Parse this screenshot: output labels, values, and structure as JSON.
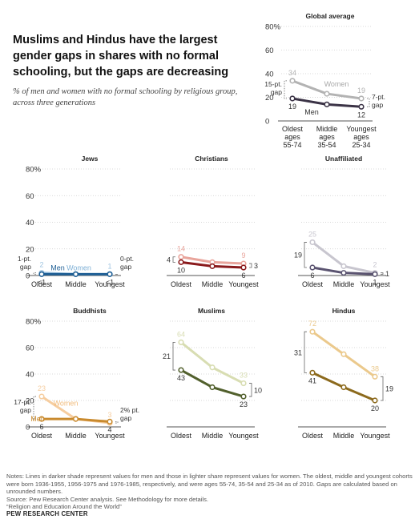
{
  "headline": "Muslims and Hindus have the largest gender gaps in shares with no formal schooling, but the gaps are decreasing",
  "subhead": "% of men and women with no formal schooling by religious group, across three generations",
  "notes": "Notes: Lines in darker shade represent values for men and those in lighter share represent values for women. The oldest, middle and youngest cohorts were born 1936-1955, 1956-1975 and 1976-1985, respectively, and were ages 55-74, 35-54 and 25-34 as of 2010. Gaps are calculated based on unrounded numbers.",
  "source": "Source: Pew Research Center analysis. See Methodology for more details.",
  "report": "“Religion and Education Around the World”",
  "brand": "PEW RESEARCH CENTER",
  "chart_data": [
    {
      "type": "line",
      "title": "Global average",
      "x": [
        "Oldest, ages 55-74",
        "Middle, ages 35-54",
        "Youngest, ages 25-34"
      ],
      "y_ticks": [
        "80%",
        "60",
        "40",
        "20",
        "0"
      ],
      "ylim": [
        0,
        80
      ],
      "series": [
        {
          "name": "Women",
          "values": [
            34,
            23,
            19
          ],
          "color": "#b3b3b3",
          "labels": [
            "34",
            "",
            "19"
          ]
        },
        {
          "name": "Men",
          "values": [
            19,
            14,
            12
          ],
          "color": "#3b3346",
          "labels": [
            "19",
            "",
            "12"
          ]
        }
      ],
      "gap_labels": [
        "15-pt. gap",
        "7-pt. gap"
      ]
    },
    {
      "type": "line",
      "title": "Jews",
      "x": [
        "Oldest",
        "Middle",
        "Youngest"
      ],
      "y_ticks": [
        "80%",
        "60",
        "40",
        "20",
        "0"
      ],
      "ylim": [
        0,
        80
      ],
      "series": [
        {
          "name": "Women",
          "values": [
            2,
            1,
            1
          ],
          "color": "#9ec3e0",
          "labels": [
            "2",
            "",
            "1"
          ]
        },
        {
          "name": "Men",
          "values": [
            1,
            1,
            1
          ],
          "color": "#1f5f95",
          "labels": [
            "<1",
            "",
            "<1"
          ]
        }
      ],
      "gap_labels": [
        "1-pt. gap",
        "0-pt. gap"
      ]
    },
    {
      "type": "line",
      "title": "Christians",
      "x": [
        "Oldest",
        "Middle",
        "Youngest"
      ],
      "y_ticks": [],
      "ylim": [
        0,
        80
      ],
      "series": [
        {
          "name": "Women",
          "values": [
            14,
            10,
            9
          ],
          "color": "#e9a59c",
          "labels": [
            "14",
            "",
            "9"
          ]
        },
        {
          "name": "Men",
          "values": [
            10,
            7,
            6
          ],
          "color": "#8a1a1c",
          "labels": [
            "10",
            "",
            "6"
          ]
        }
      ],
      "gap_labels": [
        "4",
        "3"
      ]
    },
    {
      "type": "line",
      "title": "Unaffiliated",
      "x": [
        "Oldest",
        "Middle",
        "Youngest"
      ],
      "y_ticks": [],
      "ylim": [
        0,
        80
      ],
      "series": [
        {
          "name": "Women",
          "values": [
            25,
            7,
            2
          ],
          "color": "#c8c6cf",
          "labels": [
            "25",
            "",
            "2"
          ]
        },
        {
          "name": "Men",
          "values": [
            6,
            2,
            1
          ],
          "color": "#5b5471",
          "labels": [
            "6",
            "",
            "1"
          ]
        }
      ],
      "gap_labels": [
        "19",
        "1"
      ]
    },
    {
      "type": "line",
      "title": "Buddhists",
      "x": [
        "Oldest",
        "Middle",
        "Youngest"
      ],
      "y_ticks": [
        "80%",
        "60",
        "40",
        "20",
        "0"
      ],
      "ylim": [
        0,
        80
      ],
      "series": [
        {
          "name": "Women",
          "values": [
            23,
            6,
            3
          ],
          "color": "#f6cd9f",
          "labels": [
            "23",
            "",
            "3"
          ]
        },
        {
          "name": "Men",
          "values": [
            6,
            6,
            4
          ],
          "color": "#c98a2e",
          "labels": [
            "6",
            "",
            "4"
          ]
        }
      ],
      "gap_labels": [
        "17-pt. gap",
        "2% pt. gap"
      ]
    },
    {
      "type": "line",
      "title": "Muslims",
      "x": [
        "Oldest",
        "Middle",
        "Youngest"
      ],
      "y_ticks": [],
      "ylim": [
        0,
        80
      ],
      "series": [
        {
          "name": "Women",
          "values": [
            64,
            45,
            33
          ],
          "color": "#d8ddb2",
          "labels": [
            "64",
            "",
            "33"
          ]
        },
        {
          "name": "Men",
          "values": [
            43,
            30,
            23
          ],
          "color": "#52602d",
          "labels": [
            "43",
            "",
            "23"
          ]
        }
      ],
      "gap_labels": [
        "21",
        "10"
      ]
    },
    {
      "type": "line",
      "title": "Hindus",
      "x": [
        "Oldest",
        "Middle",
        "Youngest"
      ],
      "y_ticks": [],
      "ylim": [
        0,
        80
      ],
      "series": [
        {
          "name": "Women",
          "values": [
            72,
            55,
            38
          ],
          "color": "#ebc98c",
          "labels": [
            "72",
            "",
            "38"
          ]
        },
        {
          "name": "Men",
          "values": [
            41,
            30,
            20
          ],
          "color": "#8c6a1d",
          "labels": [
            "41",
            "",
            "20"
          ]
        }
      ],
      "gap_labels": [
        "31",
        "19"
      ]
    }
  ]
}
